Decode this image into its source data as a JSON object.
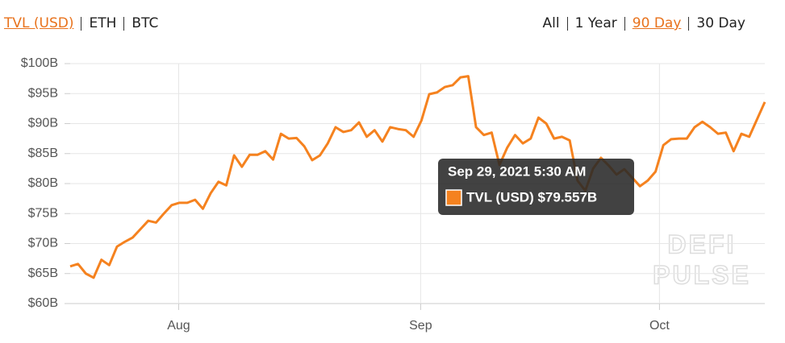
{
  "tabs_left": [
    "TVL (USD)",
    "ETH",
    "BTC"
  ],
  "active_left": 0,
  "tabs_right": [
    "All",
    "1 Year",
    "90 Day",
    "30 Day"
  ],
  "active_right": 2,
  "chart_data": {
    "type": "line",
    "x": [
      0,
      1,
      2,
      3,
      4,
      5,
      6,
      7,
      8,
      9,
      10,
      11,
      12,
      13,
      14,
      15,
      16,
      17,
      18,
      19,
      20,
      21,
      22,
      23,
      24,
      25,
      26,
      27,
      28,
      29,
      30,
      31,
      32,
      33,
      34,
      35,
      36,
      37,
      38,
      39,
      40,
      41,
      42,
      43,
      44,
      45,
      46,
      47,
      48,
      49,
      50,
      51,
      52,
      53,
      54,
      55,
      56,
      57,
      58,
      59,
      60,
      61,
      62,
      63,
      64,
      65,
      66,
      67,
      68,
      69,
      70,
      71,
      72,
      73,
      74,
      75,
      76,
      77,
      78,
      79,
      80,
      81,
      82,
      83,
      84,
      85,
      86,
      87,
      88,
      89
    ],
    "xlim": [
      0,
      89
    ],
    "xticks": [
      {
        "value": 13.9,
        "label": "Aug"
      },
      {
        "value": 44.9,
        "label": "Sep"
      },
      {
        "value": 75.5,
        "label": "Oct"
      }
    ],
    "ylim": [
      60,
      100
    ],
    "yticks": [
      {
        "value": 60,
        "label": "$60B"
      },
      {
        "value": 65,
        "label": "$65B"
      },
      {
        "value": 70,
        "label": "$70B"
      },
      {
        "value": 75,
        "label": "$75B"
      },
      {
        "value": 80,
        "label": "$80B"
      },
      {
        "value": 85,
        "label": "$85B"
      },
      {
        "value": 90,
        "label": "$90B"
      },
      {
        "value": 95,
        "label": "$95B"
      },
      {
        "value": 100,
        "label": "$100B"
      }
    ],
    "grid": true,
    "series": [
      {
        "name": "TVL (USD)",
        "color": "#f5821f",
        "values": [
          66.2,
          66.6,
          65,
          64.3,
          67.3,
          66.4,
          69.5,
          70.3,
          71,
          72.4,
          73.8,
          73.5,
          75,
          76.4,
          76.8,
          76.8,
          77.3,
          75.8,
          78.4,
          80.3,
          79.7,
          84.7,
          82.8,
          84.8,
          84.8,
          85.4,
          84,
          88.3,
          87.5,
          87.6,
          86.2,
          83.9,
          84.7,
          86.7,
          89.4,
          88.6,
          88.9,
          90.2,
          87.8,
          88.9,
          87,
          89.4,
          89.1,
          88.9,
          87.8,
          90.5,
          94.9,
          95.2,
          96.1,
          96.4,
          97.7,
          97.9,
          89.4,
          88.1,
          88.5,
          83.1,
          86,
          88.1,
          86.7,
          87.5,
          91,
          90,
          87.5,
          87.8,
          87.2,
          80.5,
          78.8,
          82.5,
          84.3,
          83,
          81.5,
          82.4,
          81,
          79.557,
          80.5,
          82,
          86.4,
          87.4,
          87.5,
          87.5,
          89.4,
          90.3,
          89.4,
          88.3,
          88.5,
          85.4,
          88.3,
          87.8,
          90.7,
          93.6
        ]
      }
    ],
    "tooltip": {
      "title": "Sep 29, 2021 5:30 AM",
      "text": "TVL (USD) $79.557B",
      "index": 73
    },
    "watermark": [
      "DEFI",
      "PULSE"
    ]
  }
}
